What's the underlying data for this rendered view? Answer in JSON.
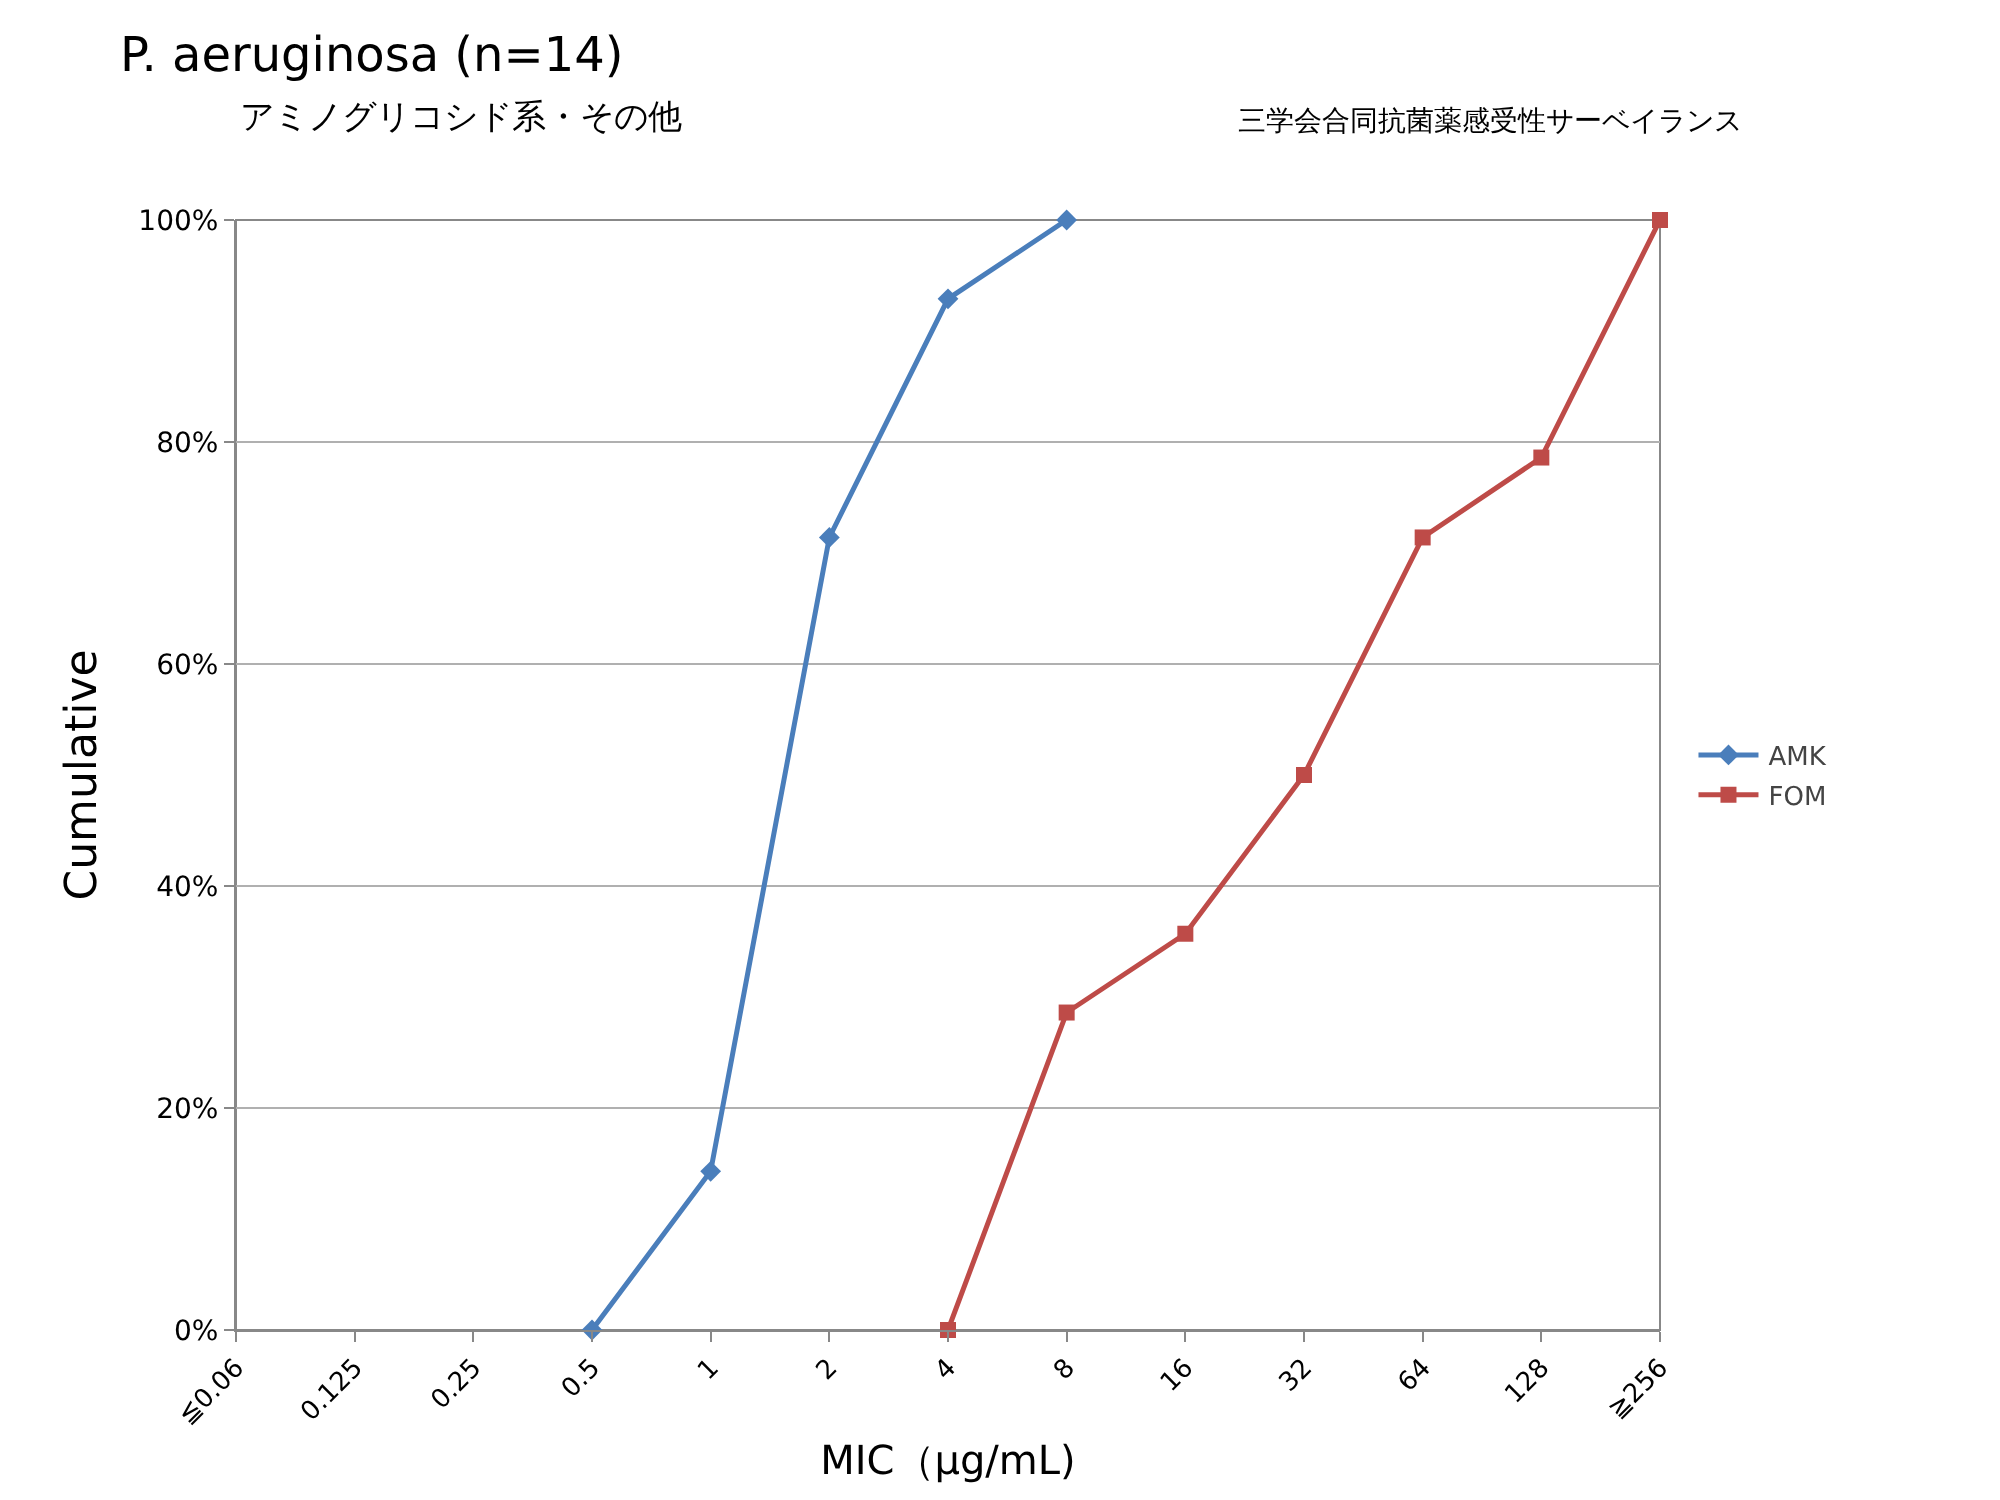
{
  "chart_data": {
    "type": "line",
    "title": "P. aeruginosa (n=14)",
    "subtitle": "アミノグリコシド系・その他",
    "annotations": [
      "三学会合同抗菌薬感受性サーベイランス"
    ],
    "xlabel": "MIC（μg/mL)",
    "ylabel": "Cumulative",
    "categories": [
      "≦0.06",
      "0.125",
      "0.25",
      "0.5",
      "1",
      "2",
      "4",
      "8",
      "16",
      "32",
      "64",
      "128",
      "≧256"
    ],
    "series": [
      {
        "name": "AMK",
        "color": "#4a7ebb",
        "marker": "diamond",
        "values": [
          null,
          null,
          null,
          0,
          14.3,
          71.4,
          92.9,
          100,
          null,
          null,
          null,
          null,
          null
        ]
      },
      {
        "name": "FOM",
        "color": "#be4b48",
        "marker": "square",
        "values": [
          null,
          null,
          null,
          null,
          null,
          null,
          0,
          28.6,
          35.7,
          50,
          71.4,
          78.6,
          100
        ]
      }
    ],
    "ylim": [
      0,
      100
    ],
    "yticks": [
      {
        "value": 0,
        "label": "0%"
      },
      {
        "value": 20,
        "label": "20%"
      },
      {
        "value": 40,
        "label": "40%"
      },
      {
        "value": 60,
        "label": "60%"
      },
      {
        "value": 80,
        "label": "80%"
      },
      {
        "value": 100,
        "label": "100%"
      }
    ],
    "grid": "y",
    "legend": "right",
    "line_style": "solid"
  }
}
